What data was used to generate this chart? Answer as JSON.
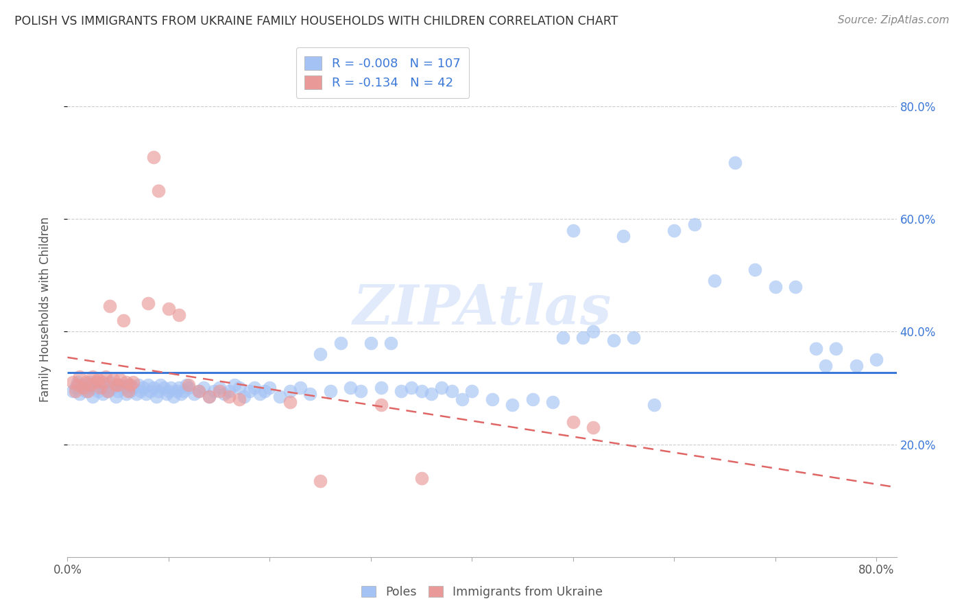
{
  "title": "POLISH VS IMMIGRANTS FROM UKRAINE FAMILY HOUSEHOLDS WITH CHILDREN CORRELATION CHART",
  "source": "Source: ZipAtlas.com",
  "ylabel": "Family Households with Children",
  "xlim": [
    0.0,
    0.82
  ],
  "ylim": [
    0.0,
    0.88
  ],
  "x_ticks": [
    0.0,
    0.1,
    0.2,
    0.3,
    0.4,
    0.5,
    0.6,
    0.7,
    0.8
  ],
  "y_ticks_right": [
    0.2,
    0.4,
    0.6,
    0.8
  ],
  "y_tick_labels_right": [
    "20.0%",
    "40.0%",
    "60.0%",
    "80.0%"
  ],
  "legend_blue_R": "-0.008",
  "legend_blue_N": "107",
  "legend_pink_R": "-0.134",
  "legend_pink_N": "42",
  "blue_color": "#a4c2f4",
  "pink_color": "#ea9999",
  "blue_line_color": "#3c78d8",
  "pink_line_color": "#e06666",
  "blue_x": [
    0.005,
    0.008,
    0.01,
    0.012,
    0.015,
    0.018,
    0.02,
    0.022,
    0.025,
    0.028,
    0.03,
    0.032,
    0.035,
    0.038,
    0.04,
    0.042,
    0.045,
    0.048,
    0.05,
    0.052,
    0.055,
    0.058,
    0.06,
    0.062,
    0.065,
    0.068,
    0.07,
    0.072,
    0.075,
    0.078,
    0.08,
    0.082,
    0.085,
    0.088,
    0.09,
    0.092,
    0.095,
    0.098,
    0.1,
    0.102,
    0.105,
    0.108,
    0.11,
    0.112,
    0.115,
    0.118,
    0.12,
    0.125,
    0.13,
    0.135,
    0.14,
    0.145,
    0.15,
    0.155,
    0.16,
    0.165,
    0.17,
    0.175,
    0.18,
    0.185,
    0.19,
    0.195,
    0.2,
    0.21,
    0.22,
    0.23,
    0.24,
    0.25,
    0.26,
    0.27,
    0.28,
    0.29,
    0.3,
    0.31,
    0.32,
    0.33,
    0.34,
    0.35,
    0.36,
    0.37,
    0.38,
    0.39,
    0.4,
    0.42,
    0.44,
    0.46,
    0.48,
    0.49,
    0.5,
    0.51,
    0.52,
    0.54,
    0.55,
    0.56,
    0.58,
    0.6,
    0.62,
    0.64,
    0.66,
    0.68,
    0.7,
    0.72,
    0.74,
    0.75,
    0.76,
    0.78,
    0.8
  ],
  "blue_y": [
    0.295,
    0.3,
    0.31,
    0.29,
    0.305,
    0.295,
    0.3,
    0.31,
    0.285,
    0.3,
    0.295,
    0.305,
    0.29,
    0.3,
    0.295,
    0.31,
    0.3,
    0.285,
    0.295,
    0.305,
    0.3,
    0.29,
    0.305,
    0.295,
    0.3,
    0.29,
    0.305,
    0.295,
    0.3,
    0.29,
    0.305,
    0.295,
    0.3,
    0.285,
    0.295,
    0.305,
    0.3,
    0.29,
    0.295,
    0.3,
    0.285,
    0.295,
    0.3,
    0.29,
    0.295,
    0.305,
    0.3,
    0.29,
    0.295,
    0.3,
    0.285,
    0.295,
    0.3,
    0.29,
    0.295,
    0.305,
    0.3,
    0.285,
    0.295,
    0.3,
    0.29,
    0.295,
    0.3,
    0.285,
    0.295,
    0.3,
    0.29,
    0.36,
    0.295,
    0.38,
    0.3,
    0.295,
    0.38,
    0.3,
    0.38,
    0.295,
    0.3,
    0.295,
    0.29,
    0.3,
    0.295,
    0.28,
    0.295,
    0.28,
    0.27,
    0.28,
    0.275,
    0.39,
    0.58,
    0.39,
    0.4,
    0.385,
    0.57,
    0.39,
    0.27,
    0.58,
    0.59,
    0.49,
    0.7,
    0.51,
    0.48,
    0.48,
    0.37,
    0.34,
    0.37,
    0.34,
    0.35
  ],
  "pink_x": [
    0.005,
    0.008,
    0.01,
    0.012,
    0.015,
    0.018,
    0.02,
    0.022,
    0.025,
    0.028,
    0.03,
    0.032,
    0.035,
    0.038,
    0.04,
    0.042,
    0.045,
    0.048,
    0.05,
    0.052,
    0.055,
    0.058,
    0.06,
    0.062,
    0.065,
    0.08,
    0.085,
    0.09,
    0.1,
    0.11,
    0.12,
    0.13,
    0.14,
    0.15,
    0.16,
    0.17,
    0.22,
    0.25,
    0.31,
    0.35,
    0.5,
    0.52
  ],
  "pink_y": [
    0.31,
    0.295,
    0.305,
    0.32,
    0.3,
    0.31,
    0.295,
    0.305,
    0.32,
    0.31,
    0.315,
    0.3,
    0.31,
    0.32,
    0.295,
    0.445,
    0.315,
    0.305,
    0.305,
    0.315,
    0.42,
    0.31,
    0.295,
    0.305,
    0.31,
    0.45,
    0.71,
    0.65,
    0.44,
    0.43,
    0.305,
    0.295,
    0.285,
    0.295,
    0.285,
    0.28,
    0.275,
    0.135,
    0.27,
    0.14,
    0.24,
    0.23
  ]
}
